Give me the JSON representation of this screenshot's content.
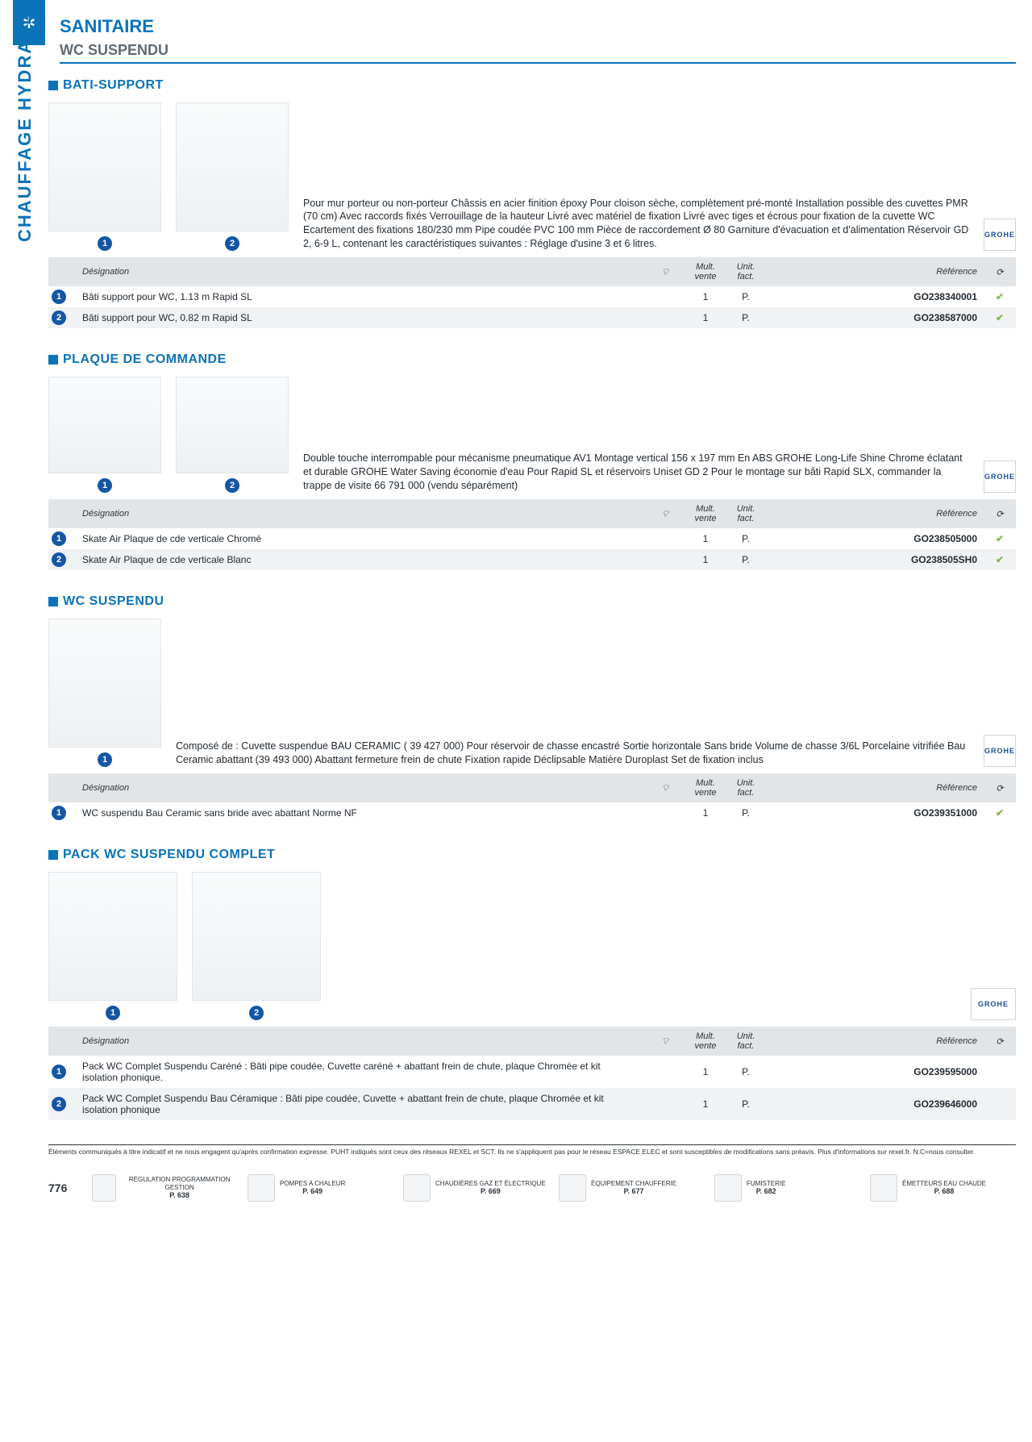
{
  "sideTabLabel": "CHAUFFAGE HYDRAULIQUE, PAC AIR-EAU, PLOMBERIE, ET SANITAIRE",
  "categoryTitle": "SANITAIRE",
  "subcategoryTitle": "WC SUSPENDU",
  "brandLabel": "GROHE",
  "pageNumber": "776",
  "tableHeaders": {
    "designation": "Désignation",
    "multVente": "Mult. vente",
    "unitFact": "Unit. fact.",
    "reference": "Référence"
  },
  "sections": [
    {
      "title": "BATI-SUPPORT",
      "images": 2,
      "description": "Pour mur porteur ou non-porteur Châssis en acier finition époxy Pour cloison sèche, complètement pré-monté Installation possible des cuvettes PMR (70 cm) Avec raccords fixés Verrouillage de la hauteur Livré avec matériel de fixation Livré avec tiges et écrous pour fixation de la cuvette WC Ecartement des fixations 180/230 mm Pipe coudée PVC 100 mm Pièce de raccordement Ø 80 Garniture d'évacuation et d'alimentation   Réservoir GD 2, 6-9 L, contenant les caractéristiques suivantes : Réglage d'usine 3 et 6 litres.",
      "rows": [
        {
          "num": "1",
          "designation": "Bâti support pour WC, 1.13 m Rapid SL",
          "mult": "1",
          "unit": "P.",
          "ref": "GO238340001",
          "stock": "✔"
        },
        {
          "num": "2",
          "designation": "Bâti support pour WC, 0.82 m Rapid SL",
          "mult": "1",
          "unit": "P.",
          "ref": "GO238587000",
          "stock": "✔"
        }
      ]
    },
    {
      "title": "PLAQUE DE COMMANDE",
      "images": 2,
      "description": "Double touche interrompable pour mécanisme pneumatique AV1\nMontage vertical 156 x 197 mm En ABS GROHE Long-Life Shine Chrome éclatant et durable GROHE Water Saving économie d'eau Pour Rapid SL et réservoirs Uniset GD 2 Pour le montage sur bâti Rapid SLX, commander la trappe de visite 66 791 000 (vendu séparément)",
      "rows": [
        {
          "num": "1",
          "designation": "Skate Air Plaque de cde verticale Chromé",
          "mult": "1",
          "unit": "P.",
          "ref": "GO238505000",
          "stock": "✔"
        },
        {
          "num": "2",
          "designation": "Skate Air Plaque de cde verticale Blanc",
          "mult": "1",
          "unit": "P.",
          "ref": "GO238505SH0",
          "stock": "✔"
        }
      ]
    },
    {
      "title": "WC SUSPENDU",
      "images": 1,
      "description": "Composé de : Cuvette suspendue BAU CERAMIC ( 39 427 000) Pour réservoir de chasse encastré Sortie horizontale Sans bride Volume de chasse 3/6L Porcelaine vitrifiée Bau Ceramic abattant (39 493 000) Abattant fermeture frein de chute Fixation rapide Déclipsable Matière Duroplast Set de fixation inclus",
      "rows": [
        {
          "num": "1",
          "designation": "WC suspendu Bau Ceramic sans bride avec abattant Norme NF",
          "mult": "1",
          "unit": "P.",
          "ref": "GO239351000",
          "stock": "✔"
        }
      ]
    },
    {
      "title": "PACK WC SUSPENDU COMPLET",
      "images": 2,
      "description": "",
      "rows": [
        {
          "num": "1",
          "designation": "Pack WC Complet Suspendu Caréné : Bâti pipe coudée, Cuvette caréné + abattant frein de chute, plaque Chromée et kit isolation phonique.",
          "mult": "1",
          "unit": "P.",
          "ref": "GO239595000",
          "stock": ""
        },
        {
          "num": "2",
          "designation": "Pack WC Complet Suspendu Bau Céramique : Bâti pipe coudée, Cuvette + abattant frein de chute, plaque Chromée et kit isolation phonique",
          "mult": "1",
          "unit": "P.",
          "ref": "GO239646000",
          "stock": ""
        }
      ]
    }
  ],
  "footerNote": "Éléments communiqués à titre indicatif et ne nous engagent qu'après confirmation expresse. PUHT indiqués sont ceux des réseaux REXEL et SCT. Ils ne s'appliquent pas pour le réseau ESPACE ELEC et sont susceptibles de modifications sans préavis. Plus d'informations sur rexel.fr. N.C=nous consulter.",
  "footerNav": [
    {
      "label": "RÉGULATION PROGRAMMATION GESTION",
      "page": "P. 638"
    },
    {
      "label": "POMPES A CHALEUR",
      "page": "P. 649"
    },
    {
      "label": "CHAUDIÈRES GAZ ET ÉLECTRIQUE",
      "page": "P. 669"
    },
    {
      "label": "ÉQUIPEMENT CHAUFFERIE",
      "page": "P. 677"
    },
    {
      "label": "FUMISTERIE",
      "page": "P. 682"
    },
    {
      "label": "ÉMETTEURS EAU CHAUDE",
      "page": "P. 688"
    }
  ]
}
